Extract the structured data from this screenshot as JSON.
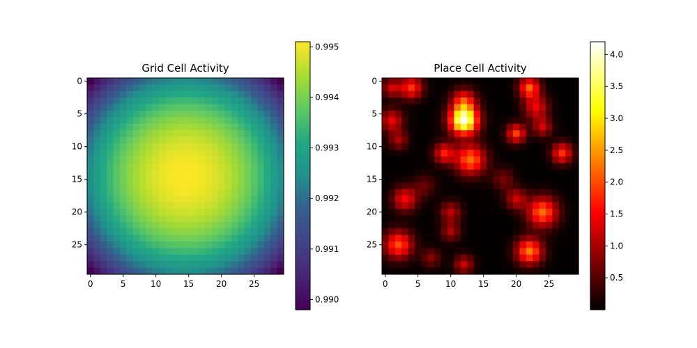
{
  "chart_data": [
    {
      "type": "heatmap",
      "title": "Grid Cell Activity",
      "rows": 30,
      "cols": 30,
      "colormap": "viridis",
      "xticks": [
        0,
        5,
        10,
        15,
        20,
        25
      ],
      "yticks": [
        0,
        5,
        10,
        15,
        20,
        25
      ],
      "vmin": 0.9898,
      "vmax": 0.9951,
      "center": 14.5,
      "colorbar_ticks": [
        0.99,
        0.991,
        0.992,
        0.993,
        0.994,
        0.995
      ],
      "colorbar_labels": [
        "0.990",
        "0.991",
        "0.992",
        "0.993",
        "0.994",
        "0.995"
      ]
    },
    {
      "type": "heatmap",
      "title": "Place Cell Activity",
      "rows": 30,
      "cols": 30,
      "colormap": "hot",
      "xticks": [
        0,
        5,
        10,
        15,
        20,
        25
      ],
      "yticks": [
        0,
        5,
        10,
        15,
        20,
        25
      ],
      "vmin": 0.0,
      "vmax": 4.2,
      "colorbar_ticks": [
        0.5,
        1.0,
        1.5,
        2.0,
        2.5,
        3.0,
        3.5,
        4.0
      ],
      "colorbar_labels": [
        "0.5",
        "1.0",
        "1.5",
        "2.0",
        "2.5",
        "3.0",
        "3.5",
        "4.0"
      ],
      "blobs": [
        {
          "row": 6,
          "col": 12,
          "amp": 4.1,
          "sigma": 1.5
        },
        {
          "row": 3,
          "col": 12,
          "amp": 1.6,
          "sigma": 1.3
        },
        {
          "row": 12,
          "col": 13,
          "amp": 2.2,
          "sigma": 1.6
        },
        {
          "row": 11,
          "col": 9,
          "amp": 1.6,
          "sigma": 1.1
        },
        {
          "row": 1,
          "col": 4,
          "amp": 1.8,
          "sigma": 1.2
        },
        {
          "row": 1,
          "col": 1,
          "amp": 1.2,
          "sigma": 1.0
        },
        {
          "row": 6,
          "col": 1,
          "amp": 1.4,
          "sigma": 1.2
        },
        {
          "row": 9,
          "col": 2,
          "amp": 1.0,
          "sigma": 1.0
        },
        {
          "row": 1,
          "col": 22,
          "amp": 2.1,
          "sigma": 1.1
        },
        {
          "row": 4,
          "col": 23,
          "amp": 1.4,
          "sigma": 1.3
        },
        {
          "row": 8,
          "col": 20,
          "amp": 1.9,
          "sigma": 1.0
        },
        {
          "row": 7,
          "col": 24,
          "amp": 1.2,
          "sigma": 1.0
        },
        {
          "row": 11,
          "col": 27,
          "amp": 1.8,
          "sigma": 1.1
        },
        {
          "row": 18,
          "col": 3,
          "amp": 1.5,
          "sigma": 1.3
        },
        {
          "row": 20,
          "col": 10,
          "amp": 1.1,
          "sigma": 1.1
        },
        {
          "row": 23,
          "col": 10,
          "amp": 1.0,
          "sigma": 1.0
        },
        {
          "row": 20,
          "col": 24,
          "amp": 2.2,
          "sigma": 1.6
        },
        {
          "row": 18,
          "col": 20,
          "amp": 1.2,
          "sigma": 1.1
        },
        {
          "row": 25,
          "col": 2,
          "amp": 2.0,
          "sigma": 1.5
        },
        {
          "row": 26,
          "col": 22,
          "amp": 2.3,
          "sigma": 1.4
        },
        {
          "row": 28,
          "col": 12,
          "amp": 1.2,
          "sigma": 1.0
        },
        {
          "row": 27,
          "col": 7,
          "amp": 0.8,
          "sigma": 1.0
        },
        {
          "row": 15,
          "col": 18,
          "amp": 0.7,
          "sigma": 1.2
        },
        {
          "row": 16,
          "col": 6,
          "amp": 0.6,
          "sigma": 1.2
        }
      ]
    }
  ]
}
